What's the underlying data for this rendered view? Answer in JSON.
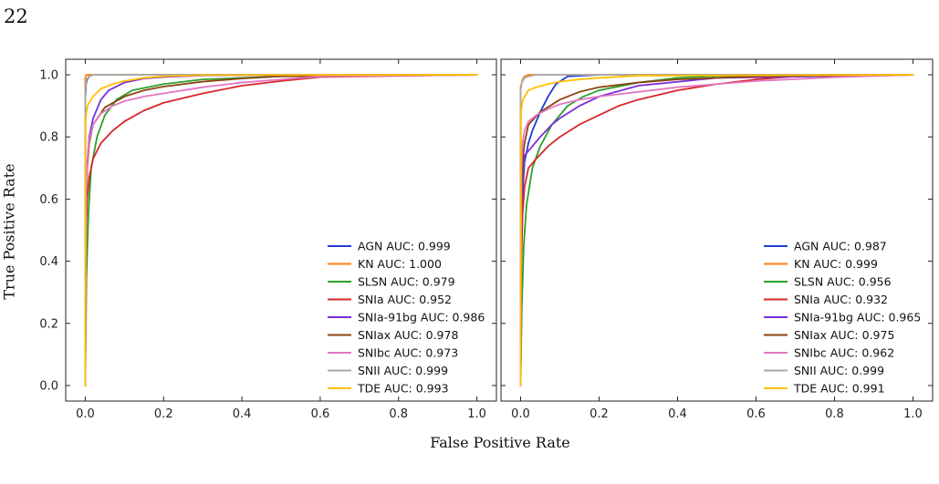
{
  "page_number": "22",
  "figure": {
    "ylabel": "True Positive Rate",
    "xlabel": "False Positive Rate"
  },
  "chart_data": [
    {
      "type": "line",
      "xlim": [
        -0.05,
        1.05
      ],
      "ylim": [
        -0.05,
        1.05
      ],
      "xticks": [
        0.0,
        0.2,
        0.4,
        0.6,
        0.8,
        1.0
      ],
      "yticks": [
        0.0,
        0.2,
        0.4,
        0.6,
        0.8,
        1.0
      ],
      "xtick_labels": [
        "0.0",
        "0.2",
        "0.4",
        "0.6",
        "0.8",
        "1.0"
      ],
      "ytick_labels": [
        "0.0",
        "0.2",
        "0.4",
        "0.6",
        "0.8",
        "1.0"
      ],
      "grid": false,
      "legend_position": "lower-right",
      "series": [
        {
          "name": "AGN AUC: 0.999",
          "color": "#1f3fd6",
          "x": [
            0,
            0,
            0.002,
            0.005,
            0.01,
            0.02,
            1
          ],
          "y": [
            0,
            0.92,
            0.97,
            0.985,
            0.995,
            1.0,
            1.0
          ]
        },
        {
          "name": "KN AUC: 1.000",
          "color": "#ff7f0e",
          "x": [
            0,
            0,
            0.003,
            1
          ],
          "y": [
            0,
            0.99,
            1.0,
            1.0
          ]
        },
        {
          "name": "SLSN AUC: 0.979",
          "color": "#2ca02c",
          "x": [
            0,
            0.003,
            0.008,
            0.015,
            0.03,
            0.05,
            0.08,
            0.12,
            0.2,
            0.3,
            0.5,
            1
          ],
          "y": [
            0,
            0.35,
            0.55,
            0.7,
            0.8,
            0.87,
            0.92,
            0.95,
            0.97,
            0.985,
            0.995,
            1.0
          ]
        },
        {
          "name": "SNIa AUC: 0.952",
          "color": "#d62728",
          "x": [
            0,
            0.002,
            0.005,
            0.01,
            0.02,
            0.04,
            0.07,
            0.1,
            0.15,
            0.2,
            0.3,
            0.4,
            0.5,
            0.6,
            1
          ],
          "y": [
            0,
            0.5,
            0.6,
            0.67,
            0.73,
            0.78,
            0.82,
            0.85,
            0.885,
            0.91,
            0.94,
            0.965,
            0.98,
            0.993,
            1.0
          ]
        },
        {
          "name": "SNIa-91bg AUC: 0.986",
          "color": "#7b2fd6",
          "x": [
            0,
            0.002,
            0.005,
            0.01,
            0.02,
            0.04,
            0.06,
            0.1,
            0.15,
            0.2,
            0.3,
            1
          ],
          "y": [
            0,
            0.6,
            0.72,
            0.8,
            0.86,
            0.92,
            0.95,
            0.975,
            0.988,
            0.993,
            0.998,
            1.0
          ]
        },
        {
          "name": "SNIax AUC: 0.978",
          "color": "#8b4513",
          "x": [
            0,
            0.002,
            0.005,
            0.01,
            0.02,
            0.05,
            0.1,
            0.15,
            0.2,
            0.3,
            0.4,
            0.5,
            1
          ],
          "y": [
            0,
            0.55,
            0.7,
            0.78,
            0.84,
            0.895,
            0.93,
            0.95,
            0.962,
            0.978,
            0.988,
            0.995,
            1.0
          ]
        },
        {
          "name": "SNIbc AUC: 0.973",
          "color": "#e377c2",
          "x": [
            0,
            0.002,
            0.005,
            0.01,
            0.02,
            0.04,
            0.07,
            0.1,
            0.15,
            0.2,
            0.3,
            0.4,
            0.5,
            0.6,
            1
          ],
          "y": [
            0,
            0.6,
            0.72,
            0.79,
            0.84,
            0.875,
            0.9,
            0.915,
            0.93,
            0.94,
            0.96,
            0.975,
            0.985,
            0.995,
            1.0
          ]
        },
        {
          "name": "SNII AUC: 0.999",
          "color": "#a9a9a9",
          "x": [
            0,
            0,
            0.003,
            0.01,
            0.02,
            1
          ],
          "y": [
            0,
            0.95,
            0.985,
            0.995,
            1.0,
            1.0
          ]
        },
        {
          "name": "TDE AUC: 0.993",
          "color": "#ffc000",
          "x": [
            0,
            0.001,
            0.003,
            0.006,
            0.01,
            0.02,
            0.04,
            0.07,
            0.1,
            0.15,
            0.2,
            0.3,
            1
          ],
          "y": [
            0,
            0.85,
            0.88,
            0.9,
            0.91,
            0.93,
            0.955,
            0.97,
            0.98,
            0.99,
            0.995,
            0.999,
            1.0
          ]
        }
      ]
    },
    {
      "type": "line",
      "xlim": [
        -0.05,
        1.05
      ],
      "ylim": [
        -0.05,
        1.05
      ],
      "xticks": [
        0.0,
        0.2,
        0.4,
        0.6,
        0.8,
        1.0
      ],
      "yticks": [
        0.0,
        0.2,
        0.4,
        0.6,
        0.8,
        1.0
      ],
      "xtick_labels": [
        "0.0",
        "0.2",
        "0.4",
        "0.6",
        "0.8",
        "1.0"
      ],
      "ytick_labels": [],
      "grid": false,
      "legend_position": "lower-right",
      "series": [
        {
          "name": "AGN AUC: 0.987",
          "color": "#1f3fd6",
          "x": [
            0,
            0.002,
            0.005,
            0.01,
            0.02,
            0.03,
            0.05,
            0.07,
            0.09,
            0.12,
            0.2,
            1
          ],
          "y": [
            0,
            0.5,
            0.62,
            0.72,
            0.78,
            0.82,
            0.88,
            0.93,
            0.97,
            0.995,
            1.0,
            1.0
          ]
        },
        {
          "name": "KN AUC: 0.999",
          "color": "#ff7f0e",
          "x": [
            0,
            0,
            0.005,
            0.01,
            0.02,
            1
          ],
          "y": [
            0,
            0.96,
            0.985,
            0.995,
            1.0,
            1.0
          ]
        },
        {
          "name": "SLSN AUC: 0.956",
          "color": "#2ca02c",
          "x": [
            0,
            0.003,
            0.008,
            0.015,
            0.03,
            0.05,
            0.08,
            0.12,
            0.16,
            0.2,
            0.3,
            0.4,
            0.5,
            1
          ],
          "y": [
            0,
            0.25,
            0.45,
            0.58,
            0.7,
            0.77,
            0.84,
            0.9,
            0.93,
            0.95,
            0.975,
            0.99,
            0.996,
            1.0
          ]
        },
        {
          "name": "SNIa AUC: 0.932",
          "color": "#d62728",
          "x": [
            0,
            0.002,
            0.005,
            0.01,
            0.02,
            0.04,
            0.07,
            0.1,
            0.15,
            0.2,
            0.25,
            0.3,
            0.4,
            0.5,
            0.6,
            0.7,
            1
          ],
          "y": [
            0,
            0.4,
            0.55,
            0.64,
            0.7,
            0.73,
            0.77,
            0.8,
            0.84,
            0.87,
            0.9,
            0.92,
            0.95,
            0.97,
            0.985,
            0.995,
            1.0
          ]
        },
        {
          "name": "SNIa-91bg AUC: 0.965",
          "color": "#7b2fd6",
          "x": [
            0,
            0.002,
            0.005,
            0.01,
            0.03,
            0.05,
            0.08,
            0.1,
            0.15,
            0.2,
            0.3,
            0.5,
            1
          ],
          "y": [
            0,
            0.55,
            0.68,
            0.74,
            0.77,
            0.8,
            0.84,
            0.86,
            0.9,
            0.93,
            0.965,
            0.99,
            1.0
          ]
        },
        {
          "name": "SNIax AUC: 0.975",
          "color": "#8b4513",
          "x": [
            0,
            0.002,
            0.005,
            0.01,
            0.02,
            0.05,
            0.1,
            0.15,
            0.2,
            0.3,
            0.4,
            0.5,
            0.6,
            1
          ],
          "y": [
            0,
            0.6,
            0.72,
            0.78,
            0.84,
            0.88,
            0.92,
            0.945,
            0.96,
            0.975,
            0.985,
            0.99,
            0.995,
            1.0
          ]
        },
        {
          "name": "SNIbc AUC: 0.962",
          "color": "#e377c2",
          "x": [
            0,
            0.002,
            0.005,
            0.01,
            0.02,
            0.04,
            0.07,
            0.1,
            0.15,
            0.2,
            0.3,
            0.4,
            0.5,
            0.6,
            0.8,
            1
          ],
          "y": [
            0,
            0.7,
            0.78,
            0.82,
            0.85,
            0.87,
            0.89,
            0.905,
            0.92,
            0.93,
            0.945,
            0.96,
            0.97,
            0.98,
            0.992,
            1.0
          ]
        },
        {
          "name": "SNII AUC: 0.999",
          "color": "#a9a9a9",
          "x": [
            0,
            0,
            0.003,
            0.01,
            0.02,
            0.04,
            1
          ],
          "y": [
            0,
            0.95,
            0.975,
            0.99,
            0.995,
            1.0,
            1.0
          ]
        },
        {
          "name": "TDE AUC: 0.991",
          "color": "#ffc000",
          "x": [
            0,
            0.001,
            0.003,
            0.006,
            0.01,
            0.02,
            0.04,
            0.07,
            0.1,
            0.15,
            0.2,
            0.3,
            1
          ],
          "y": [
            0,
            0.88,
            0.9,
            0.92,
            0.93,
            0.95,
            0.96,
            0.97,
            0.978,
            0.985,
            0.99,
            0.997,
            1.0
          ]
        }
      ]
    }
  ]
}
